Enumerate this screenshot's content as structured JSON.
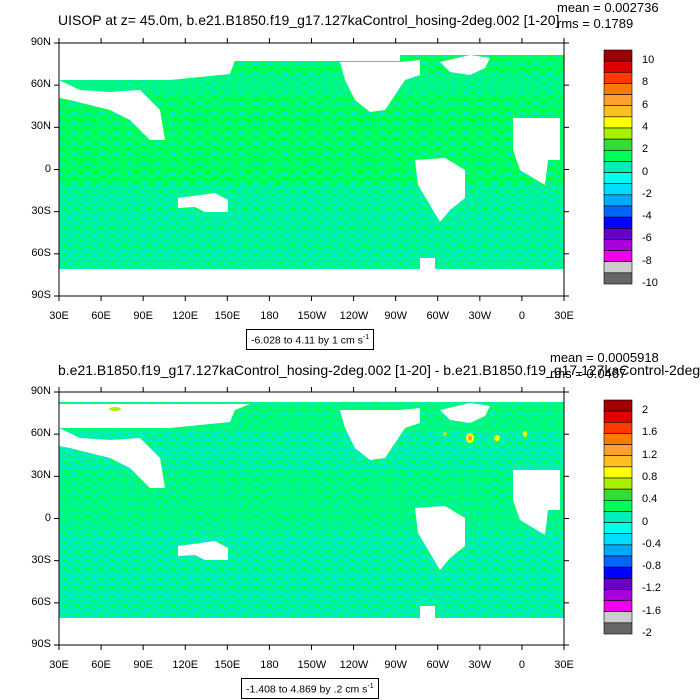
{
  "panels": [
    {
      "title": "UISOP at z=  45.0m, b.e21.B1850.f19_g17.127kaControl_hosing-2deg.002 [1-20]",
      "mean_text": "mean = 0.002736",
      "rms_text": "rms = 0.1789",
      "range_text": "-6.028 to 4.11 by 1 cm s",
      "range_exp": "-1",
      "colorbar_labels": [
        "10",
        "8",
        "6",
        "4",
        "2",
        "0",
        "-2",
        "-4",
        "-6",
        "-8",
        "-10"
      ]
    },
    {
      "title": "b.e21.B1850.f19_g17.127kaControl_hosing-2deg.002 [1-20] - b.e21.B1850.f19_g17.127kaControl-2deg.",
      "mean_text": "mean = 0.0005918",
      "rms_text": "rms = 0.0467",
      "range_text": "-1.408 to 4.869 by .2 cm s",
      "range_exp": "-1",
      "colorbar_labels": [
        "2",
        "1.6",
        "1.2",
        "0.8",
        "0.4",
        "0",
        "-0.4",
        "-0.8",
        "-1.2",
        "-1.6",
        "-2"
      ]
    }
  ],
  "lat_labels": [
    "90N",
    "60N",
    "30N",
    "0",
    "30S",
    "60S",
    "90S"
  ],
  "lon_labels": [
    "30E",
    "60E",
    "90E",
    "120E",
    "150E",
    "180",
    "150W",
    "120W",
    "90W",
    "60W",
    "30W",
    "0",
    "30E"
  ],
  "colors": {
    "ocean_main": "#00ff55",
    "ocean_light": "#00eebb",
    "land": "#ffffff",
    "colorbar": [
      "#a00000",
      "#e00000",
      "#ff3a00",
      "#ff7a00",
      "#ffa030",
      "#ffc020",
      "#ffff00",
      "#aaee00",
      "#33dd33",
      "#00ff55",
      "#00eebb",
      "#00ffee",
      "#00ddff",
      "#00aaff",
      "#0066ff",
      "#0000ff",
      "#6600cc",
      "#aa00dd",
      "#ee00ee",
      "#cccccc",
      "#666666"
    ]
  }
}
